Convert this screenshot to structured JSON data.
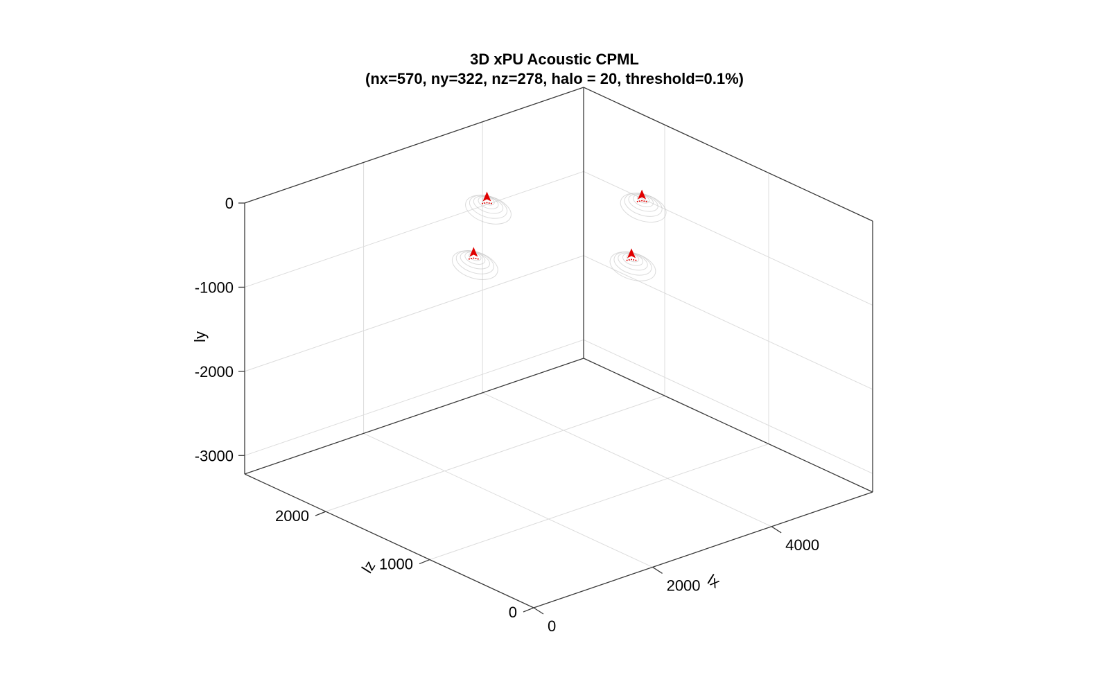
{
  "chart_data": {
    "type": "scatter",
    "title": "3D xPU Acoustic CPML",
    "subtitle": "(nx=570, ny=322, nz=278, halo = 20, threshold=0.1%)",
    "xlabel": "lx",
    "ylabel": "ly",
    "zlabel": "lz",
    "xlim": [
      0,
      5700
    ],
    "ylim": [
      -3220,
      0
    ],
    "zlim": [
      0,
      2780
    ],
    "x_ticks": [
      0,
      2000,
      4000
    ],
    "x_tick_labels": [
      "0",
      "2000",
      "4000"
    ],
    "y_ticks": [
      0,
      -1000,
      -2000,
      -3000
    ],
    "y_tick_labels": [
      "0",
      "-1000",
      "-2000",
      "-3000"
    ],
    "z_ticks": [
      0,
      1000,
      2000
    ],
    "z_tick_labels": [
      "0",
      "1000",
      "2000"
    ],
    "grid": true,
    "view": "3d-isometric",
    "series": [
      {
        "marker": "isosurface-source",
        "color": "#e00000",
        "surface_color": "#bdbdbd",
        "points": [
          {
            "x": 4250,
            "y": -170,
            "z": 1390
          },
          {
            "x": 2850,
            "y": -250,
            "z": 2080
          },
          {
            "x": 1420,
            "y": -170,
            "z": 1390
          },
          {
            "x": 2850,
            "y": -130,
            "z": 690
          }
        ]
      }
    ]
  }
}
